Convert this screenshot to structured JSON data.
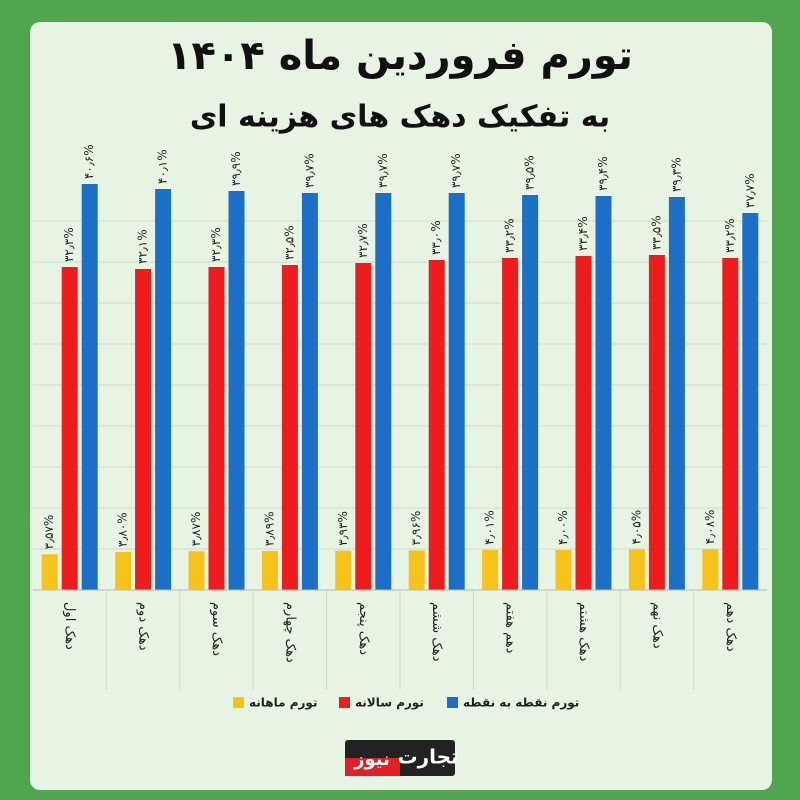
{
  "chart_data": {
    "type": "bar",
    "title": "تورم فروردین ماه ۱۴۰۴",
    "subtitle": "به تفکیک دهک های هزینه ای",
    "categories": [
      "دهک اول",
      "دهک دوم",
      "دهک سوم",
      "دهک چهارم",
      "دهک پنجم",
      "دهک ششم",
      "دهم هفتم",
      "دهک هشتم",
      "دهک نهم",
      "دهک دهم"
    ],
    "series": [
      {
        "name": "تورم ماهانه",
        "color": "#f7c31b",
        "values": [
          3.57,
          3.8,
          3.87,
          3.89,
          3.93,
          3.96,
          4.01,
          4.0,
          4.05,
          4.08
        ],
        "value_labels": [
          "۳٫۵۷%",
          "۳٫۸۰%",
          "۳٫۸۷%",
          "۳٫۸۹%",
          "۳٫۹۳%",
          "۳٫۹۶%",
          "۴٫۰۱%",
          "۴٫۰۰%",
          "۴٫۰۵%",
          "۴٫۰۸%"
        ]
      },
      {
        "name": "تورم سالانه",
        "color": "#ee1c1c",
        "values": [
          32.3,
          32.1,
          32.3,
          32.5,
          32.7,
          33.0,
          33.2,
          33.4,
          33.5,
          33.2
        ],
        "value_labels": [
          "۳۲٫۳%",
          "۳۲٫۱%",
          "۳۲٫۳%",
          "۳۲٫۵%",
          "۳۲٫۷%",
          "۳۳٫۰%",
          "۳۳٫۲%",
          "۳۳٫۴%",
          "۳۳٫۵%",
          "۳۳٫۲%"
        ]
      },
      {
        "name": "تورم نقطه به نقطه",
        "color": "#1b6fc6",
        "values": [
          40.6,
          40.1,
          39.9,
          39.7,
          39.7,
          39.7,
          39.5,
          39.4,
          39.3,
          37.7
        ],
        "value_labels": [
          "۴۰٫۶%",
          "۴۰٫۱%",
          "۳۹٫۹%",
          "۳۹٫۷%",
          "۳۹٫۷%",
          "۳۹٫۷%",
          "۳۹٫۵%",
          "۳۹٫۴%",
          "۳۹٫۳%",
          "۳۷٫۷%"
        ]
      }
    ],
    "ylim": [
      0,
      41
    ],
    "brand": [
      "تجارت",
      "نیوز"
    ]
  }
}
